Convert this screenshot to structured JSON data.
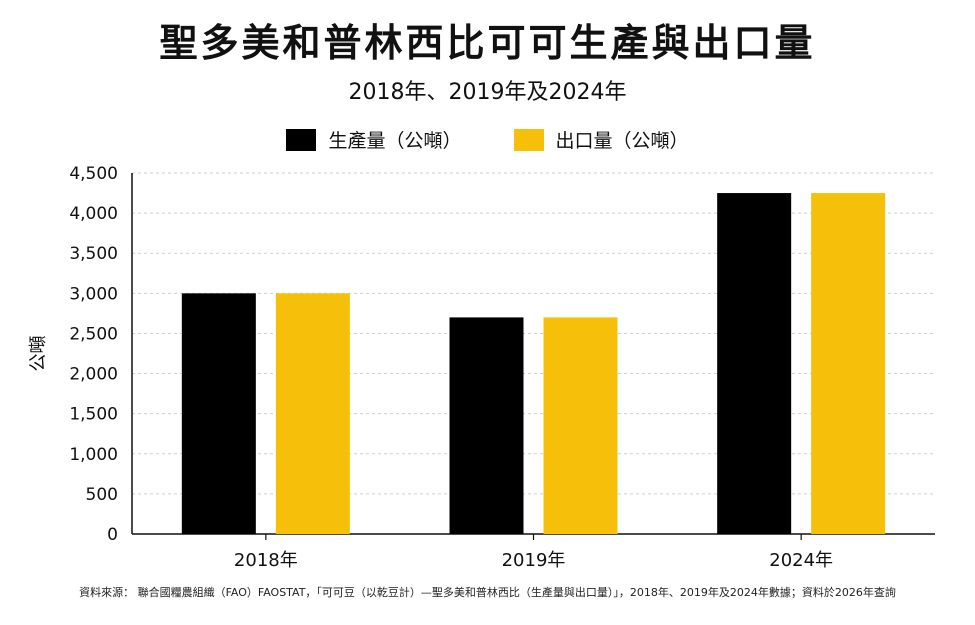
{
  "chart_data": {
    "type": "bar",
    "title": "聖多美和普林西比可可生產與出口量",
    "subtitle": "2018年、2019年及2024年",
    "categories": [
      "2018年",
      "2019年",
      "2024年"
    ],
    "series": [
      {
        "name": "生產量（公噸）",
        "color": "#000000",
        "values": [
          3000,
          2700,
          4250
        ]
      },
      {
        "name": "出口量（公噸）",
        "color": "#f5bf0a",
        "values": [
          3000,
          2700,
          4250
        ]
      }
    ],
    "ylabel": "公噸",
    "xlabel": "",
    "ylim": [
      0,
      4500
    ],
    "yticks": [
      "0",
      "500",
      "1,000",
      "1,500",
      "2,000",
      "2,500",
      "3,000",
      "3,500",
      "4,000",
      "4,500"
    ],
    "grid": true,
    "legend_position": "top-center",
    "source": "資料來源： 聯合國糧農組織（FAO）FAOSTAT，「可可豆（以乾豆計）—聖多美和普林西比（生產量與出口量）」，2018年、2019年及2024年數據；資料於2026年查詢"
  }
}
